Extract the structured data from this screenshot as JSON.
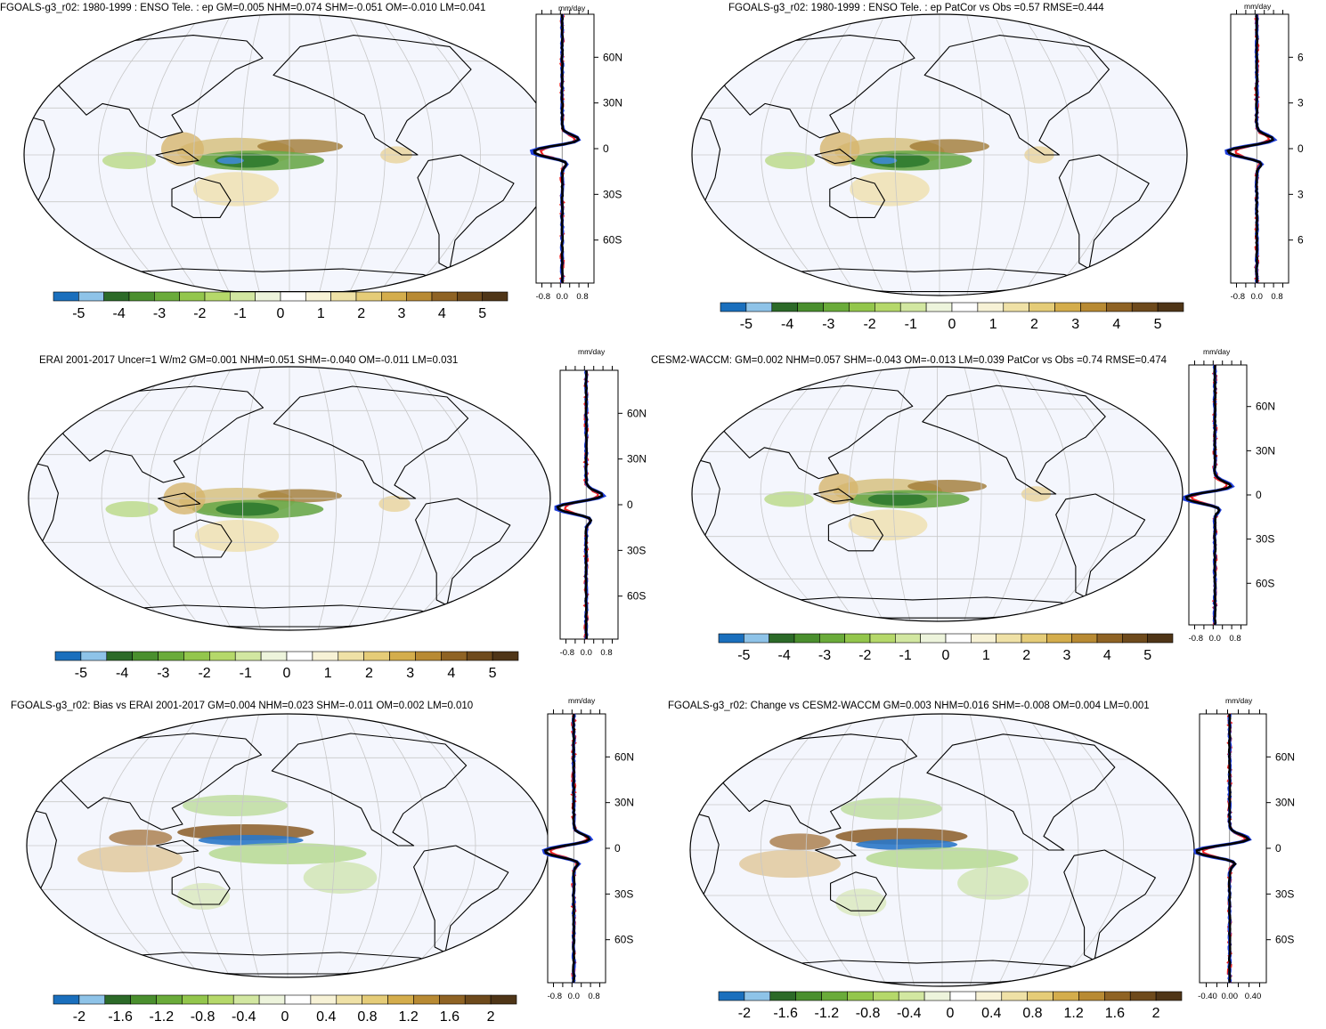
{
  "panels": [
    {
      "title": "FGOALS-g3_r02: 1980-1999 : ENSO Tele. : ep GM=0.005 NHM=0.074 SHM=-0.051 OM=-0.010 LM=0.041",
      "unit": "mm/day",
      "lat_labels": [
        "60N",
        "30N",
        "0",
        "30S",
        "60S"
      ],
      "x_ticks": [
        "-0.8",
        "0.0",
        "0.8"
      ],
      "colorbar_labels": [
        "-5",
        "-4",
        "-3",
        "-2",
        "-1",
        "0",
        "1",
        "2",
        "3",
        "4",
        "5"
      ]
    },
    {
      "title": "FGOALS-g3_r02: 1980-1999 : ENSO Tele. : ep PatCor vs Obs =0.57 RMSE=0.444",
      "unit": "mm/day",
      "lat_labels": [
        "6",
        "3",
        "0",
        "3",
        "6"
      ],
      "x_ticks": [
        "-0.8",
        "0.0",
        "0.8"
      ],
      "colorbar_labels": [
        "-5",
        "-4",
        "-3",
        "-2",
        "-1",
        "0",
        "1",
        "2",
        "3",
        "4",
        "5"
      ]
    },
    {
      "title": "ERAI 2001-2017 Uncer=1 W/m2 GM=0.001 NHM=0.051 SHM=-0.040 OM=-0.011 LM=0.031",
      "unit": "mm/day",
      "lat_labels": [
        "60N",
        "30N",
        "0",
        "30S",
        "60S"
      ],
      "x_ticks": [
        "-0.8",
        "0.0",
        "0.8"
      ],
      "colorbar_labels": [
        "-5",
        "-4",
        "-3",
        "-2",
        "-1",
        "0",
        "1",
        "2",
        "3",
        "4",
        "5"
      ]
    },
    {
      "title": "CESM2-WACCM: GM=0.002 NHM=0.057 SHM=-0.043 OM=-0.013 LM=0.039 PatCor vs Obs =0.74 RMSE=0.474",
      "unit": "mm/day",
      "lat_labels": [
        "60N",
        "30N",
        "0",
        "30S",
        "60S"
      ],
      "x_ticks": [
        "-0.8",
        "0.0",
        "0.8"
      ],
      "colorbar_labels": [
        "-5",
        "-4",
        "-3",
        "-2",
        "-1",
        "0",
        "1",
        "2",
        "3",
        "4",
        "5"
      ]
    },
    {
      "title": "FGOALS-g3_r02: Bias vs ERAI 2001-2017 GM=0.004 NHM=0.023 SHM=-0.011 OM=0.002 LM=0.010",
      "unit": "mm/day",
      "lat_labels": [
        "60N",
        "30N",
        "0",
        "30S",
        "60S"
      ],
      "x_ticks": [
        "-0.8",
        "0.0",
        "0.8"
      ],
      "colorbar_labels": [
        "-2",
        "-1.6",
        "-1.2",
        "-0.8",
        "-0.4",
        "0",
        "0.4",
        "0.8",
        "1.2",
        "1.6",
        "2"
      ]
    },
    {
      "title": "FGOALS-g3_r02: Change vs CESM2-WACCM GM=0.003 NHM=0.016 SHM=-0.008 OM=0.004 LM=0.001",
      "unit": "mm/day",
      "lat_labels": [
        "60N",
        "30N",
        "0",
        "30S",
        "60S"
      ],
      "x_ticks": [
        "-0.40",
        "0.00",
        "0.40"
      ],
      "colorbar_labels": [
        "-2",
        "-1.6",
        "-1.2",
        "-0.8",
        "-0.4",
        "0",
        "0.4",
        "0.8",
        "1.2",
        "1.6",
        "2"
      ]
    }
  ],
  "colorbar_colors": [
    "#1a6fbd",
    "#8ec3e8",
    "#2c6a28",
    "#4a8f2e",
    "#6aab3a",
    "#93c64c",
    "#b5d86a",
    "#d2e7a1",
    "#edf4dc",
    "#ffffff",
    "#f7f2d6",
    "#efe1a6",
    "#e5cc78",
    "#d4ad4c",
    "#b88a33",
    "#8f6324",
    "#6e4a1c",
    "#4f3517"
  ],
  "colors": {
    "ocean": "#f4f6fd",
    "model_line": "#000000",
    "obs_line": "#1f3fdc",
    "diff_line": "#ee2222"
  }
}
